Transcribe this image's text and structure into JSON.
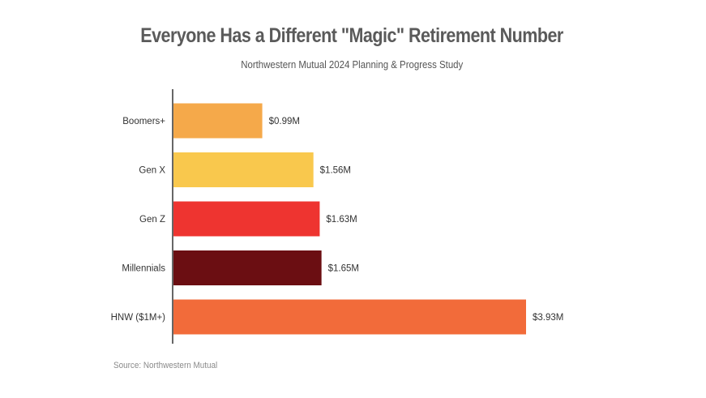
{
  "chart_data": {
    "type": "bar",
    "orientation": "horizontal",
    "title": "Everyone Has a Different \"Magic\" Retirement Number",
    "subtitle": "Northwestern Mutual 2024 Planning & Progress Study",
    "categories": [
      "Boomers+",
      "Gen X",
      "Gen Z",
      "Millennials",
      "HNW ($1M+)"
    ],
    "values": [
      0.99,
      1.56,
      1.63,
      1.65,
      3.93
    ],
    "value_labels": [
      "$0.99M",
      "$1.56M",
      "$1.63M",
      "$1.65M",
      "$3.93M"
    ],
    "colors": [
      "#f5a94a",
      "#f9c84d",
      "#ee3430",
      "#6b0e12",
      "#f26b3a"
    ],
    "xlim": [
      0,
      4.0
    ],
    "grid": false,
    "legend": "none",
    "source": "Source: Northwestern Mutual"
  }
}
